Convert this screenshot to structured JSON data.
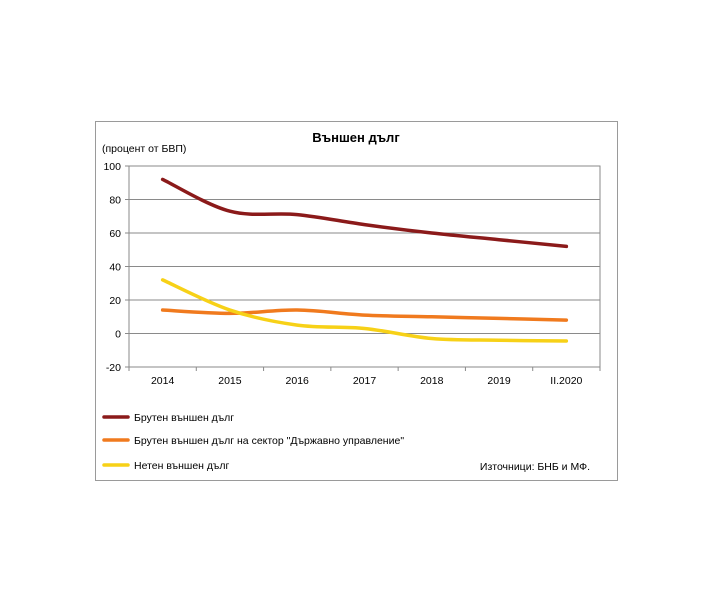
{
  "chart_data": {
    "type": "line",
    "title": "Външен дълг",
    "ylabel": "(процент от БВП)",
    "xlabel": "",
    "categories": [
      "2014",
      "2015",
      "2016",
      "2017",
      "2018",
      "2019",
      "II.2020"
    ],
    "ylim": [
      -20,
      100
    ],
    "yticks": [
      100,
      80,
      60,
      40,
      20,
      0,
      -20
    ],
    "grid": true,
    "legend_position": "bottom",
    "series": [
      {
        "name": "Брутен външен дълг",
        "color": "#8b1a1a",
        "values": [
          92,
          73,
          71,
          65,
          60,
          56,
          52
        ]
      },
      {
        "name": "Брутен външен дълг на сектор \"Държавно управление\"",
        "color": "#f07a1e",
        "values": [
          14,
          12,
          14,
          11,
          10,
          9,
          8
        ]
      },
      {
        "name": "Нетен външен дълг",
        "color": "#f7d117",
        "values": [
          32,
          14,
          5,
          3,
          -3,
          -4,
          -4.5
        ]
      }
    ],
    "source_note": "Източници: БНБ и МФ."
  }
}
